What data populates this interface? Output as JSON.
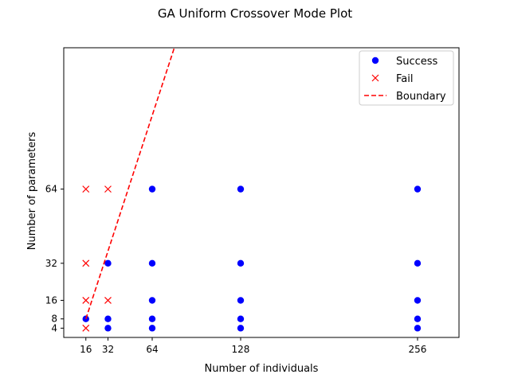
{
  "chart_data": {
    "type": "scatter",
    "title": "GA Uniform Crossover Mode Plot",
    "xlabel": "Number of individuals",
    "ylabel": "Number of parameters",
    "xlim": [
      0,
      286
    ],
    "ylim": [
      0,
      125
    ],
    "xticks": [
      16,
      32,
      64,
      128,
      256
    ],
    "yticks": [
      4,
      8,
      16,
      32,
      64
    ],
    "grid": false,
    "legend_position": "top-right",
    "series": [
      {
        "name": "Success",
        "marker": "circle",
        "color": "#0000ff",
        "points": [
          {
            "x": 16,
            "y": 8
          },
          {
            "x": 32,
            "y": 4
          },
          {
            "x": 32,
            "y": 8
          },
          {
            "x": 32,
            "y": 32
          },
          {
            "x": 64,
            "y": 4
          },
          {
            "x": 64,
            "y": 8
          },
          {
            "x": 64,
            "y": 16
          },
          {
            "x": 64,
            "y": 32
          },
          {
            "x": 64,
            "y": 64
          },
          {
            "x": 128,
            "y": 4
          },
          {
            "x": 128,
            "y": 8
          },
          {
            "x": 128,
            "y": 16
          },
          {
            "x": 128,
            "y": 32
          },
          {
            "x": 128,
            "y": 64
          },
          {
            "x": 256,
            "y": 4
          },
          {
            "x": 256,
            "y": 8
          },
          {
            "x": 256,
            "y": 16
          },
          {
            "x": 256,
            "y": 32
          },
          {
            "x": 256,
            "y": 64
          }
        ]
      },
      {
        "name": "Fail",
        "marker": "x",
        "color": "#ff0000",
        "points": [
          {
            "x": 16,
            "y": 4
          },
          {
            "x": 16,
            "y": 16
          },
          {
            "x": 16,
            "y": 32
          },
          {
            "x": 16,
            "y": 64
          },
          {
            "x": 32,
            "y": 16
          },
          {
            "x": 32,
            "y": 64
          }
        ]
      },
      {
        "name": "Boundary",
        "line_style": "dashed",
        "color": "#ff0000",
        "points": [
          {
            "x": 16,
            "y": 8
          },
          {
            "x": 80,
            "y": 125
          }
        ]
      }
    ]
  }
}
